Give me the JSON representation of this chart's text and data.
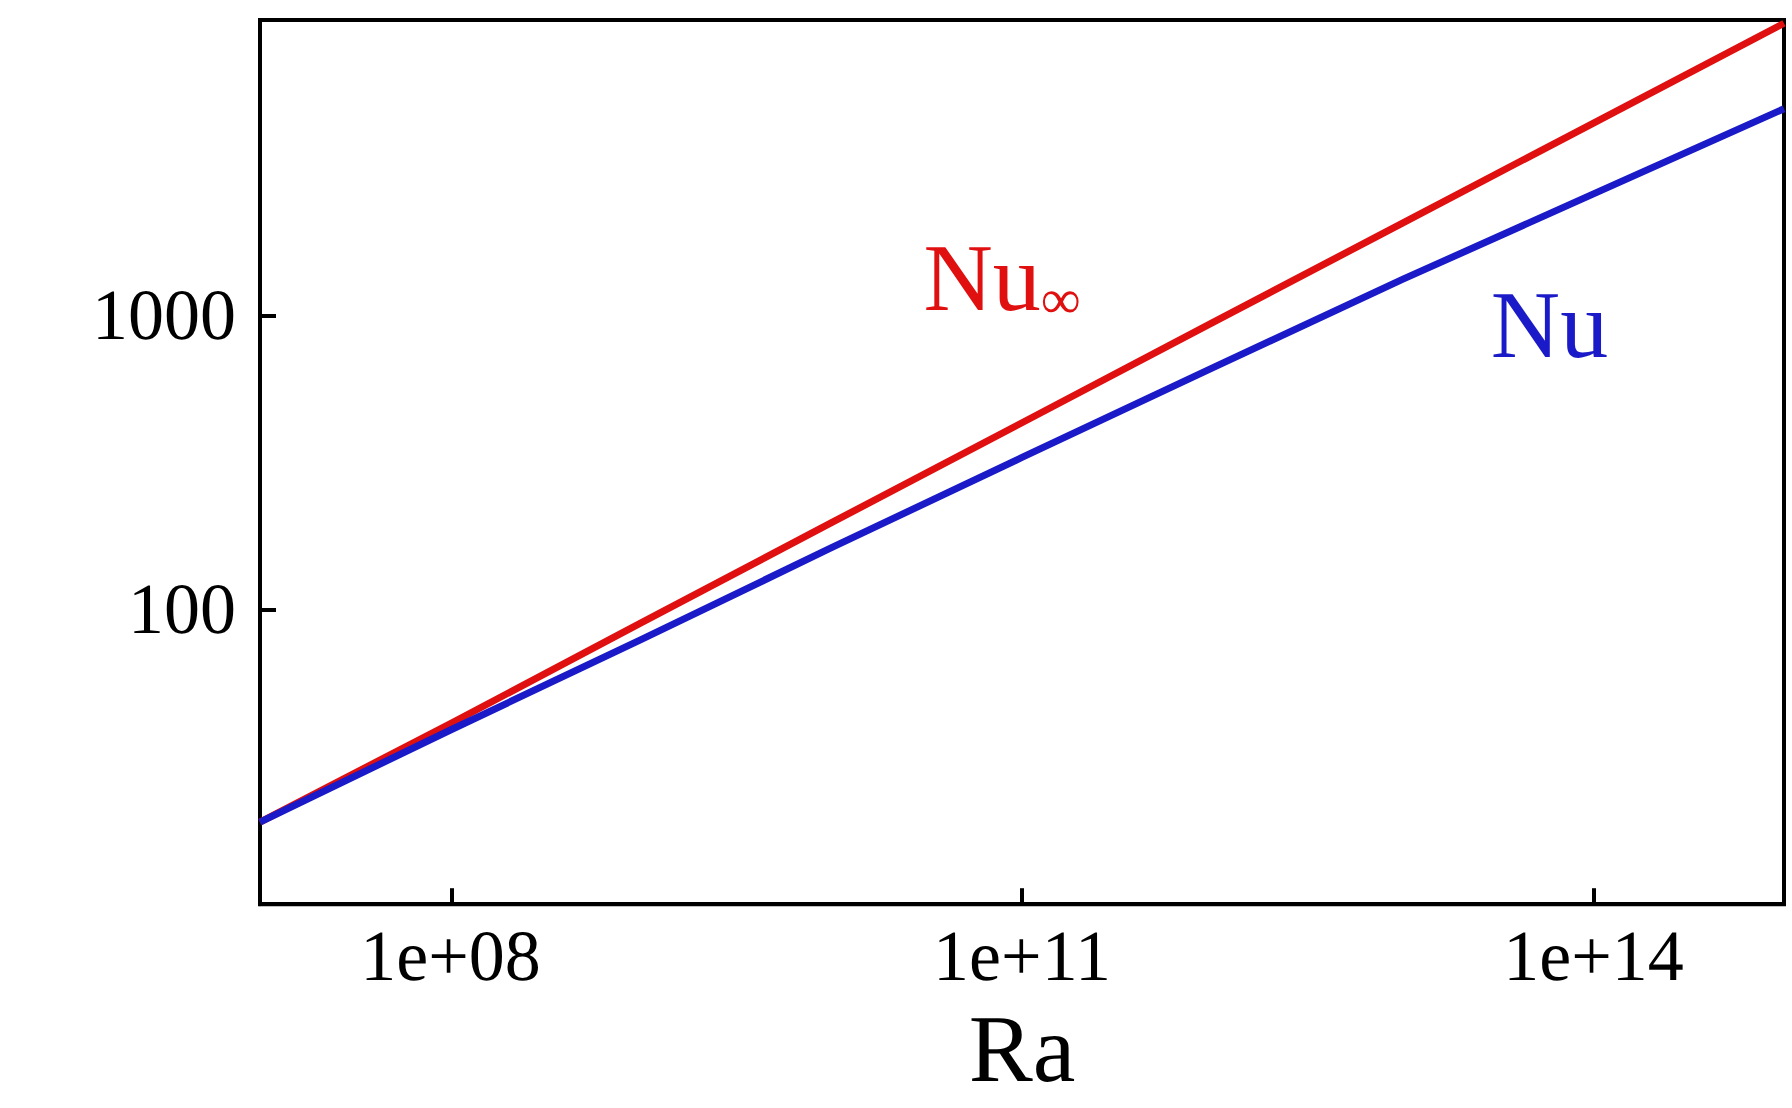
{
  "chart_data": {
    "type": "line",
    "xlabel": "Ra",
    "log": "xy",
    "grid": false,
    "legend": false,
    "marker": "none",
    "xlim": [
      10000000.0,
      1000000000000000.0
    ],
    "ylim": [
      10,
      10000
    ],
    "xticks": [
      {
        "value": 100000000.0,
        "label": "1e+08"
      },
      {
        "value": 100000000000.0,
        "label": "1e+11"
      },
      {
        "value": 100000000000000.0,
        "label": "1e+14"
      }
    ],
    "yticks": [
      100,
      1000
    ],
    "x": [
      10000000.0,
      100000000.0,
      1000000000.0,
      10000000000.0,
      100000000000.0,
      1000000000000.0,
      10000000000000.0,
      100000000000000.0,
      1000000000000000.0
    ],
    "series": [
      {
        "name": "Nu$_{∞}$",
        "color": "#e01010",
        "values": [
          19,
          41,
          90,
          197,
          430,
          940,
          2050,
          4470,
          9750
        ]
      },
      {
        "name": "Nu",
        "color": "#1a1ac8",
        "values": [
          19,
          39,
          79,
          162,
          328,
          660,
          1320,
          2570,
          5000
        ]
      }
    ]
  }
}
